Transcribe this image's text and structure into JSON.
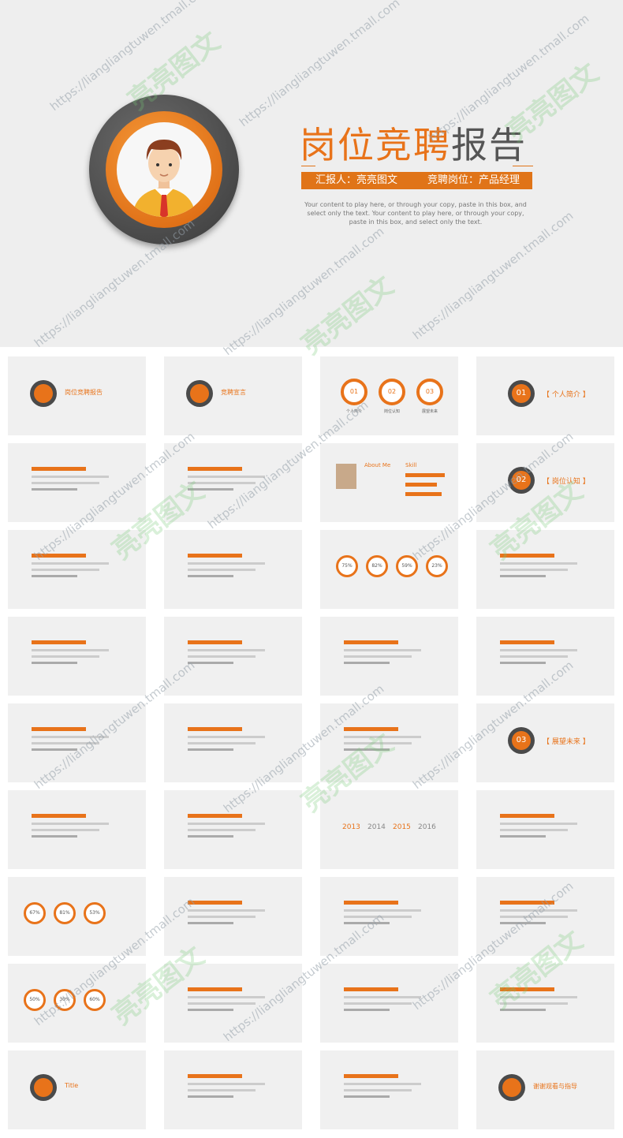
{
  "cover": {
    "title_orange": "岗位竞聘",
    "title_gray": "报告",
    "reporter": "汇报人：亮亮图文",
    "position": "竞聘岗位：产品经理",
    "subtext": "Your content to play here, or through your copy, paste in this box, and select only the text. Your content to play here, or through your copy, paste in this box, and select only the text."
  },
  "colors": {
    "accent": "#e8731a",
    "dark": "#4a4a4a",
    "bg": "#eeeeee"
  },
  "thumbnails": [
    {
      "label": "岗位竞聘报告"
    },
    {
      "label": "竞聘宣言"
    },
    {
      "items": [
        "01",
        "02",
        "03"
      ],
      "sub": [
        "个人简介",
        "岗位认知",
        "展望未来"
      ]
    },
    {
      "num": "01",
      "label": "个人简介"
    },
    {
      "label": ""
    },
    {
      "label": ""
    },
    {
      "about": "About Me",
      "skill": "Skill"
    },
    {
      "num": "02",
      "label": "岗位认知"
    },
    {
      "label": ""
    },
    {
      "label": ""
    },
    {
      "pcts": [
        "75%",
        "82%",
        "59%",
        "23%"
      ]
    },
    {
      "label": ""
    },
    {
      "label": ""
    },
    {
      "label": ""
    },
    {
      "label": ""
    },
    {
      "label": ""
    },
    {
      "label": ""
    },
    {
      "label": ""
    },
    {
      "label": ""
    },
    {
      "num": "03",
      "label": "展望未来"
    },
    {
      "label": ""
    },
    {
      "label": ""
    },
    {
      "years": [
        "2013",
        "2014",
        "2015",
        "2016"
      ]
    },
    {
      "label": ""
    },
    {
      "pcts": [
        "67%",
        "81%",
        "53%"
      ]
    },
    {
      "label": ""
    },
    {
      "label": ""
    },
    {
      "label": ""
    },
    {
      "pcts": [
        "50%",
        "30%",
        "60%"
      ]
    },
    {
      "label": ""
    },
    {
      "label": ""
    },
    {
      "label": ""
    },
    {
      "label": "Title"
    },
    {
      "label": ""
    },
    {
      "label": ""
    },
    {
      "label": "谢谢观看与指导"
    }
  ],
  "watermark": {
    "url": "https://liangliangtuwen.tmall.com",
    "brand": "亮亮图文"
  }
}
